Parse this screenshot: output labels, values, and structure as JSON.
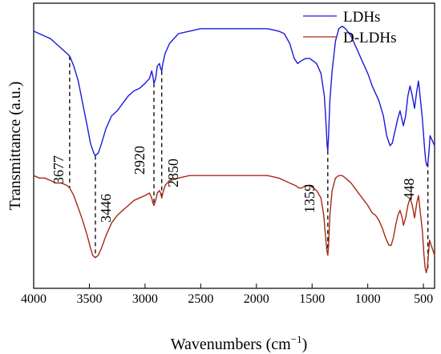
{
  "chart_data": {
    "type": "line",
    "xlabel": "Wavenumbers (cm",
    "xlabel_sup": "−1",
    "xlabel_close": ")",
    "ylabel": "Transmittance (a.u.)",
    "xlim": [
      4000,
      400
    ],
    "x_inverted": true,
    "y_ticks_shown": false,
    "xticks": [
      4000,
      3500,
      3000,
      2500,
      2000,
      1500,
      1000,
      500
    ],
    "legend_position": "top-right",
    "series": [
      {
        "name": "LDHs",
        "color": "#1a1adc",
        "points": [
          [
            4000,
            92
          ],
          [
            3950,
            91
          ],
          [
            3900,
            90
          ],
          [
            3850,
            89
          ],
          [
            3800,
            87
          ],
          [
            3750,
            85
          ],
          [
            3700,
            83
          ],
          [
            3677,
            82
          ],
          [
            3640,
            78
          ],
          [
            3600,
            72
          ],
          [
            3560,
            63
          ],
          [
            3520,
            54
          ],
          [
            3490,
            47
          ],
          [
            3460,
            43
          ],
          [
            3446,
            42
          ],
          [
            3420,
            43
          ],
          [
            3390,
            47
          ],
          [
            3350,
            53
          ],
          [
            3300,
            58
          ],
          [
            3250,
            60
          ],
          [
            3200,
            63
          ],
          [
            3150,
            66
          ],
          [
            3100,
            68
          ],
          [
            3050,
            69
          ],
          [
            3000,
            71
          ],
          [
            2960,
            73
          ],
          [
            2940,
            76
          ],
          [
            2930,
            74
          ],
          [
            2920,
            71
          ],
          [
            2905,
            73
          ],
          [
            2890,
            78
          ],
          [
            2870,
            79
          ],
          [
            2860,
            77
          ],
          [
            2850,
            76
          ],
          [
            2840,
            79
          ],
          [
            2820,
            83
          ],
          [
            2780,
            87
          ],
          [
            2700,
            91
          ],
          [
            2600,
            92
          ],
          [
            2500,
            93
          ],
          [
            2300,
            93
          ],
          [
            2100,
            93
          ],
          [
            1900,
            93
          ],
          [
            1800,
            92
          ],
          [
            1750,
            91
          ],
          [
            1700,
            87
          ],
          [
            1660,
            81
          ],
          [
            1630,
            79
          ],
          [
            1600,
            80
          ],
          [
            1560,
            81
          ],
          [
            1520,
            81
          ],
          [
            1490,
            80
          ],
          [
            1460,
            79
          ],
          [
            1420,
            75
          ],
          [
            1390,
            66
          ],
          [
            1375,
            55
          ],
          [
            1365,
            46
          ],
          [
            1359,
            44
          ],
          [
            1352,
            50
          ],
          [
            1340,
            64
          ],
          [
            1320,
            76
          ],
          [
            1290,
            88
          ],
          [
            1260,
            93
          ],
          [
            1230,
            94
          ],
          [
            1200,
            93
          ],
          [
            1150,
            90
          ],
          [
            1100,
            85
          ],
          [
            1050,
            80
          ],
          [
            1000,
            75
          ],
          [
            960,
            70
          ],
          [
            930,
            67
          ],
          [
            900,
            64
          ],
          [
            860,
            58
          ],
          [
            830,
            50
          ],
          [
            800,
            46
          ],
          [
            780,
            47
          ],
          [
            760,
            51
          ],
          [
            730,
            57
          ],
          [
            710,
            60
          ],
          [
            690,
            56
          ],
          [
            680,
            54
          ],
          [
            660,
            58
          ],
          [
            640,
            66
          ],
          [
            620,
            70
          ],
          [
            600,
            66
          ],
          [
            580,
            61
          ],
          [
            560,
            68
          ],
          [
            545,
            72
          ],
          [
            530,
            66
          ],
          [
            510,
            57
          ],
          [
            490,
            45
          ],
          [
            480,
            40
          ],
          [
            470,
            38
          ],
          [
            460,
            39
          ],
          [
            450,
            44
          ],
          [
            440,
            50
          ],
          [
            420,
            48
          ],
          [
            400,
            46
          ]
        ]
      },
      {
        "name": "D-LDHs",
        "color": "#a62a14",
        "points": [
          [
            4000,
            34
          ],
          [
            3950,
            33
          ],
          [
            3900,
            33
          ],
          [
            3850,
            32
          ],
          [
            3800,
            31
          ],
          [
            3750,
            31
          ],
          [
            3700,
            30
          ],
          [
            3677,
            29
          ],
          [
            3640,
            26
          ],
          [
            3600,
            21
          ],
          [
            3560,
            16
          ],
          [
            3520,
            10
          ],
          [
            3490,
            5
          ],
          [
            3470,
            2
          ],
          [
            3446,
            1
          ],
          [
            3420,
            2
          ],
          [
            3390,
            5
          ],
          [
            3350,
            10
          ],
          [
            3300,
            15
          ],
          [
            3250,
            18
          ],
          [
            3200,
            20
          ],
          [
            3150,
            22
          ],
          [
            3100,
            24
          ],
          [
            3050,
            25
          ],
          [
            3000,
            26
          ],
          [
            2960,
            27
          ],
          [
            2940,
            25
          ],
          [
            2930,
            23
          ],
          [
            2920,
            22
          ],
          [
            2905,
            24
          ],
          [
            2890,
            27
          ],
          [
            2870,
            28
          ],
          [
            2860,
            27
          ],
          [
            2850,
            25
          ],
          [
            2840,
            27
          ],
          [
            2820,
            30
          ],
          [
            2780,
            32
          ],
          [
            2700,
            33
          ],
          [
            2600,
            34
          ],
          [
            2500,
            34
          ],
          [
            2300,
            34
          ],
          [
            2100,
            34
          ],
          [
            1900,
            34
          ],
          [
            1800,
            33
          ],
          [
            1750,
            32
          ],
          [
            1700,
            31
          ],
          [
            1650,
            30
          ],
          [
            1620,
            29
          ],
          [
            1590,
            29
          ],
          [
            1560,
            30
          ],
          [
            1520,
            30
          ],
          [
            1490,
            29
          ],
          [
            1460,
            28
          ],
          [
            1420,
            25
          ],
          [
            1395,
            18
          ],
          [
            1380,
            10
          ],
          [
            1368,
            4
          ],
          [
            1359,
            2
          ],
          [
            1352,
            6
          ],
          [
            1340,
            18
          ],
          [
            1320,
            28
          ],
          [
            1290,
            33
          ],
          [
            1260,
            34
          ],
          [
            1230,
            34
          ],
          [
            1200,
            33
          ],
          [
            1150,
            31
          ],
          [
            1100,
            28
          ],
          [
            1050,
            25
          ],
          [
            1000,
            22
          ],
          [
            960,
            19
          ],
          [
            930,
            18
          ],
          [
            900,
            16
          ],
          [
            870,
            13
          ],
          [
            840,
            9
          ],
          [
            810,
            6
          ],
          [
            790,
            6
          ],
          [
            770,
            9
          ],
          [
            750,
            14
          ],
          [
            730,
            18
          ],
          [
            710,
            20
          ],
          [
            690,
            17
          ],
          [
            680,
            14
          ],
          [
            660,
            17
          ],
          [
            640,
            22
          ],
          [
            620,
            25
          ],
          [
            600,
            22
          ],
          [
            580,
            17
          ],
          [
            560,
            23
          ],
          [
            545,
            26
          ],
          [
            530,
            20
          ],
          [
            510,
            12
          ],
          [
            495,
            2
          ],
          [
            485,
            -3
          ],
          [
            475,
            -5
          ],
          [
            465,
            -3
          ],
          [
            455,
            3
          ],
          [
            445,
            8
          ],
          [
            430,
            6
          ],
          [
            415,
            4
          ],
          [
            400,
            2
          ]
        ]
      }
    ],
    "annotations": [
      {
        "label": "3677",
        "x": 3677,
        "y_top": 82,
        "y_bottom": 29
      },
      {
        "label": "3446",
        "x": 3446,
        "y_top": 42,
        "y_bottom": 1
      },
      {
        "label": "2920",
        "x": 2920,
        "y_top": 71,
        "y_bottom": 22
      },
      {
        "label": "2850",
        "x": 2850,
        "y_top": 76,
        "y_bottom": 25
      },
      {
        "label": "1359",
        "x": 1359,
        "y_top": 44,
        "y_bottom": 2
      },
      {
        "label": "448",
        "x": 460,
        "y_top": 39,
        "y_bottom": -4
      }
    ]
  }
}
